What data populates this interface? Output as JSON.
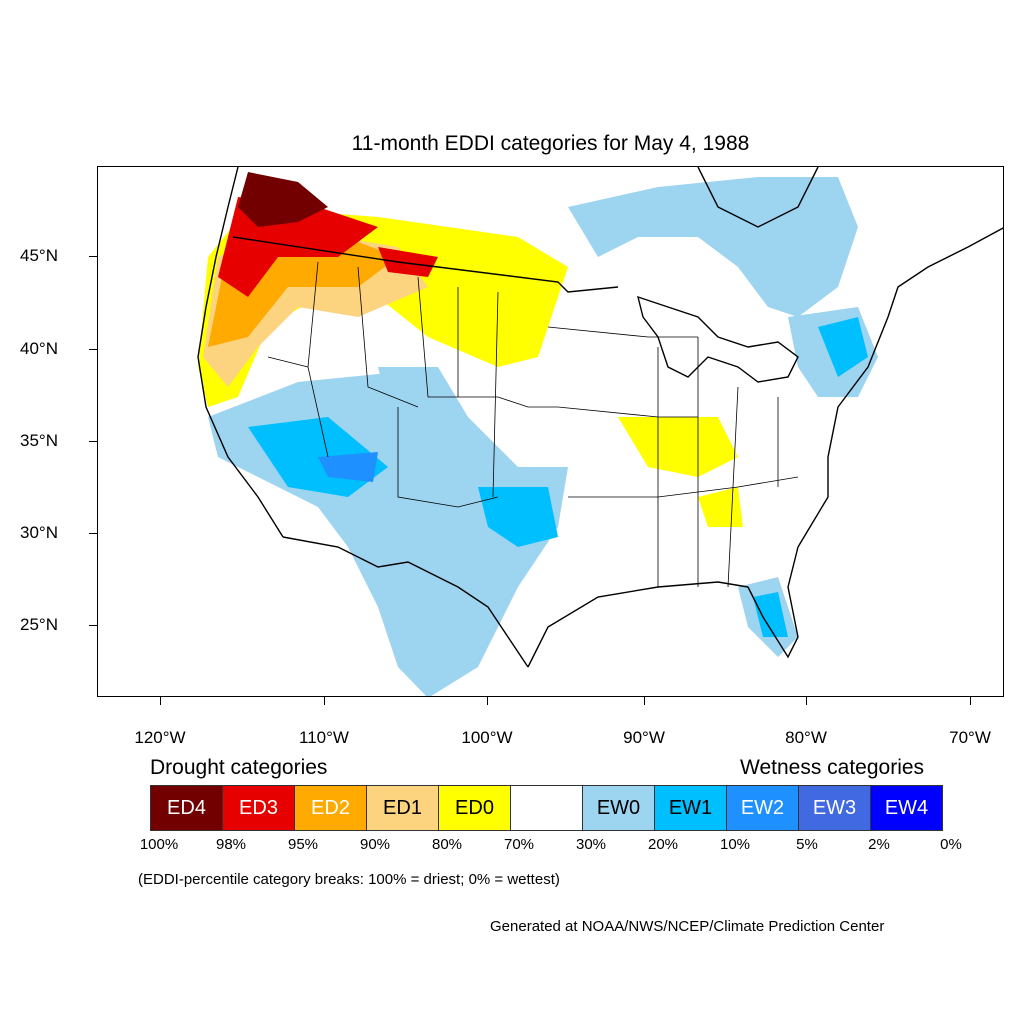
{
  "title": "11-month EDDI categories for May 4, 1988",
  "lat_labels": [
    "45°N",
    "40°N",
    "35°N",
    "30°N",
    "25°N"
  ],
  "lon_labels": [
    "120°W",
    "110°W",
    "100°W",
    "90°W",
    "80°W",
    "70°W"
  ],
  "legend": {
    "drought_heading": "Drought categories",
    "wetness_heading": "Wetness categories",
    "categories": [
      {
        "label": "ED4",
        "color": "#730000",
        "text_color": "#ffffff"
      },
      {
        "label": "ED3",
        "color": "#e60000",
        "text_color": "#ffffff"
      },
      {
        "label": "ED2",
        "color": "#ffaa00",
        "text_color": "#ffffff"
      },
      {
        "label": "ED1",
        "color": "#fcd37f",
        "text_color": "#000000"
      },
      {
        "label": "ED0",
        "color": "#ffff00",
        "text_color": "#000000"
      },
      {
        "label": "",
        "color": "#ffffff",
        "text_color": "#000000"
      },
      {
        "label": "EW0",
        "color": "#9dd4f0",
        "text_color": "#000000"
      },
      {
        "label": "EW1",
        "color": "#00bfff",
        "text_color": "#000000"
      },
      {
        "label": "EW2",
        "color": "#1e90ff",
        "text_color": "#ffffff"
      },
      {
        "label": "EW3",
        "color": "#4169e1",
        "text_color": "#ffffff"
      },
      {
        "label": "EW4",
        "color": "#0000ff",
        "text_color": "#ffffff"
      }
    ],
    "percent_breaks": [
      "100%",
      "98%",
      "95%",
      "90%",
      "80%",
      "70%",
      "30%",
      "20%",
      "10%",
      "5%",
      "2%",
      "0%"
    ]
  },
  "note": "(EDDI-percentile category breaks: 100% = driest; 0% = wettest)",
  "credit": "Generated at NOAA/NWS/NCEP/Climate Prediction Center"
}
